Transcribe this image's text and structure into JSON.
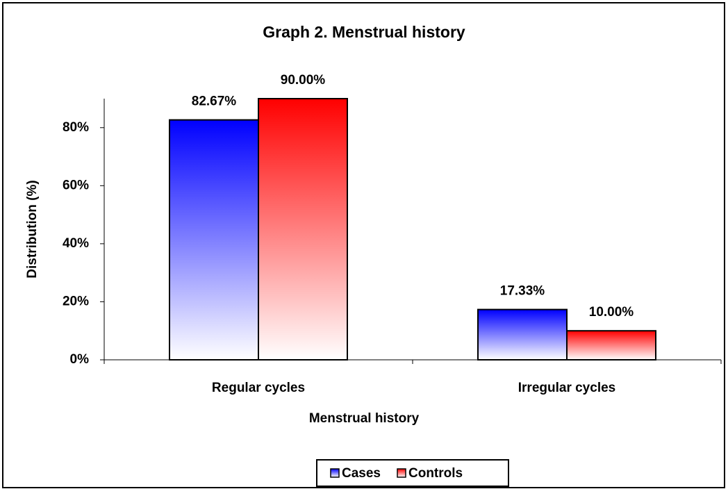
{
  "chart_data": {
    "type": "bar",
    "title": "Graph 2. Menstrual history",
    "x_label": "Menstrual history",
    "y_label": "Distribution (%)",
    "categories": [
      "Regular cycles",
      "Irregular cycles"
    ],
    "series": [
      {
        "name": "Cases",
        "color": "#0000ff",
        "values": [
          82.67,
          17.33
        ],
        "value_labels": [
          "82.67%",
          "17.33%"
        ]
      },
      {
        "name": "Controls",
        "color": "#ff0000",
        "values": [
          90.0,
          10.0
        ],
        "value_labels": [
          "90.00%",
          "10.00%"
        ]
      }
    ],
    "ylim": [
      0,
      90
    ],
    "yticks": [
      {
        "value": 0,
        "label": "0%"
      },
      {
        "value": 20,
        "label": "20%"
      },
      {
        "value": 40,
        "label": "40%"
      },
      {
        "value": 60,
        "label": "60%"
      },
      {
        "value": 80,
        "label": "80%"
      }
    ],
    "grid": false,
    "legend": "bottom"
  }
}
